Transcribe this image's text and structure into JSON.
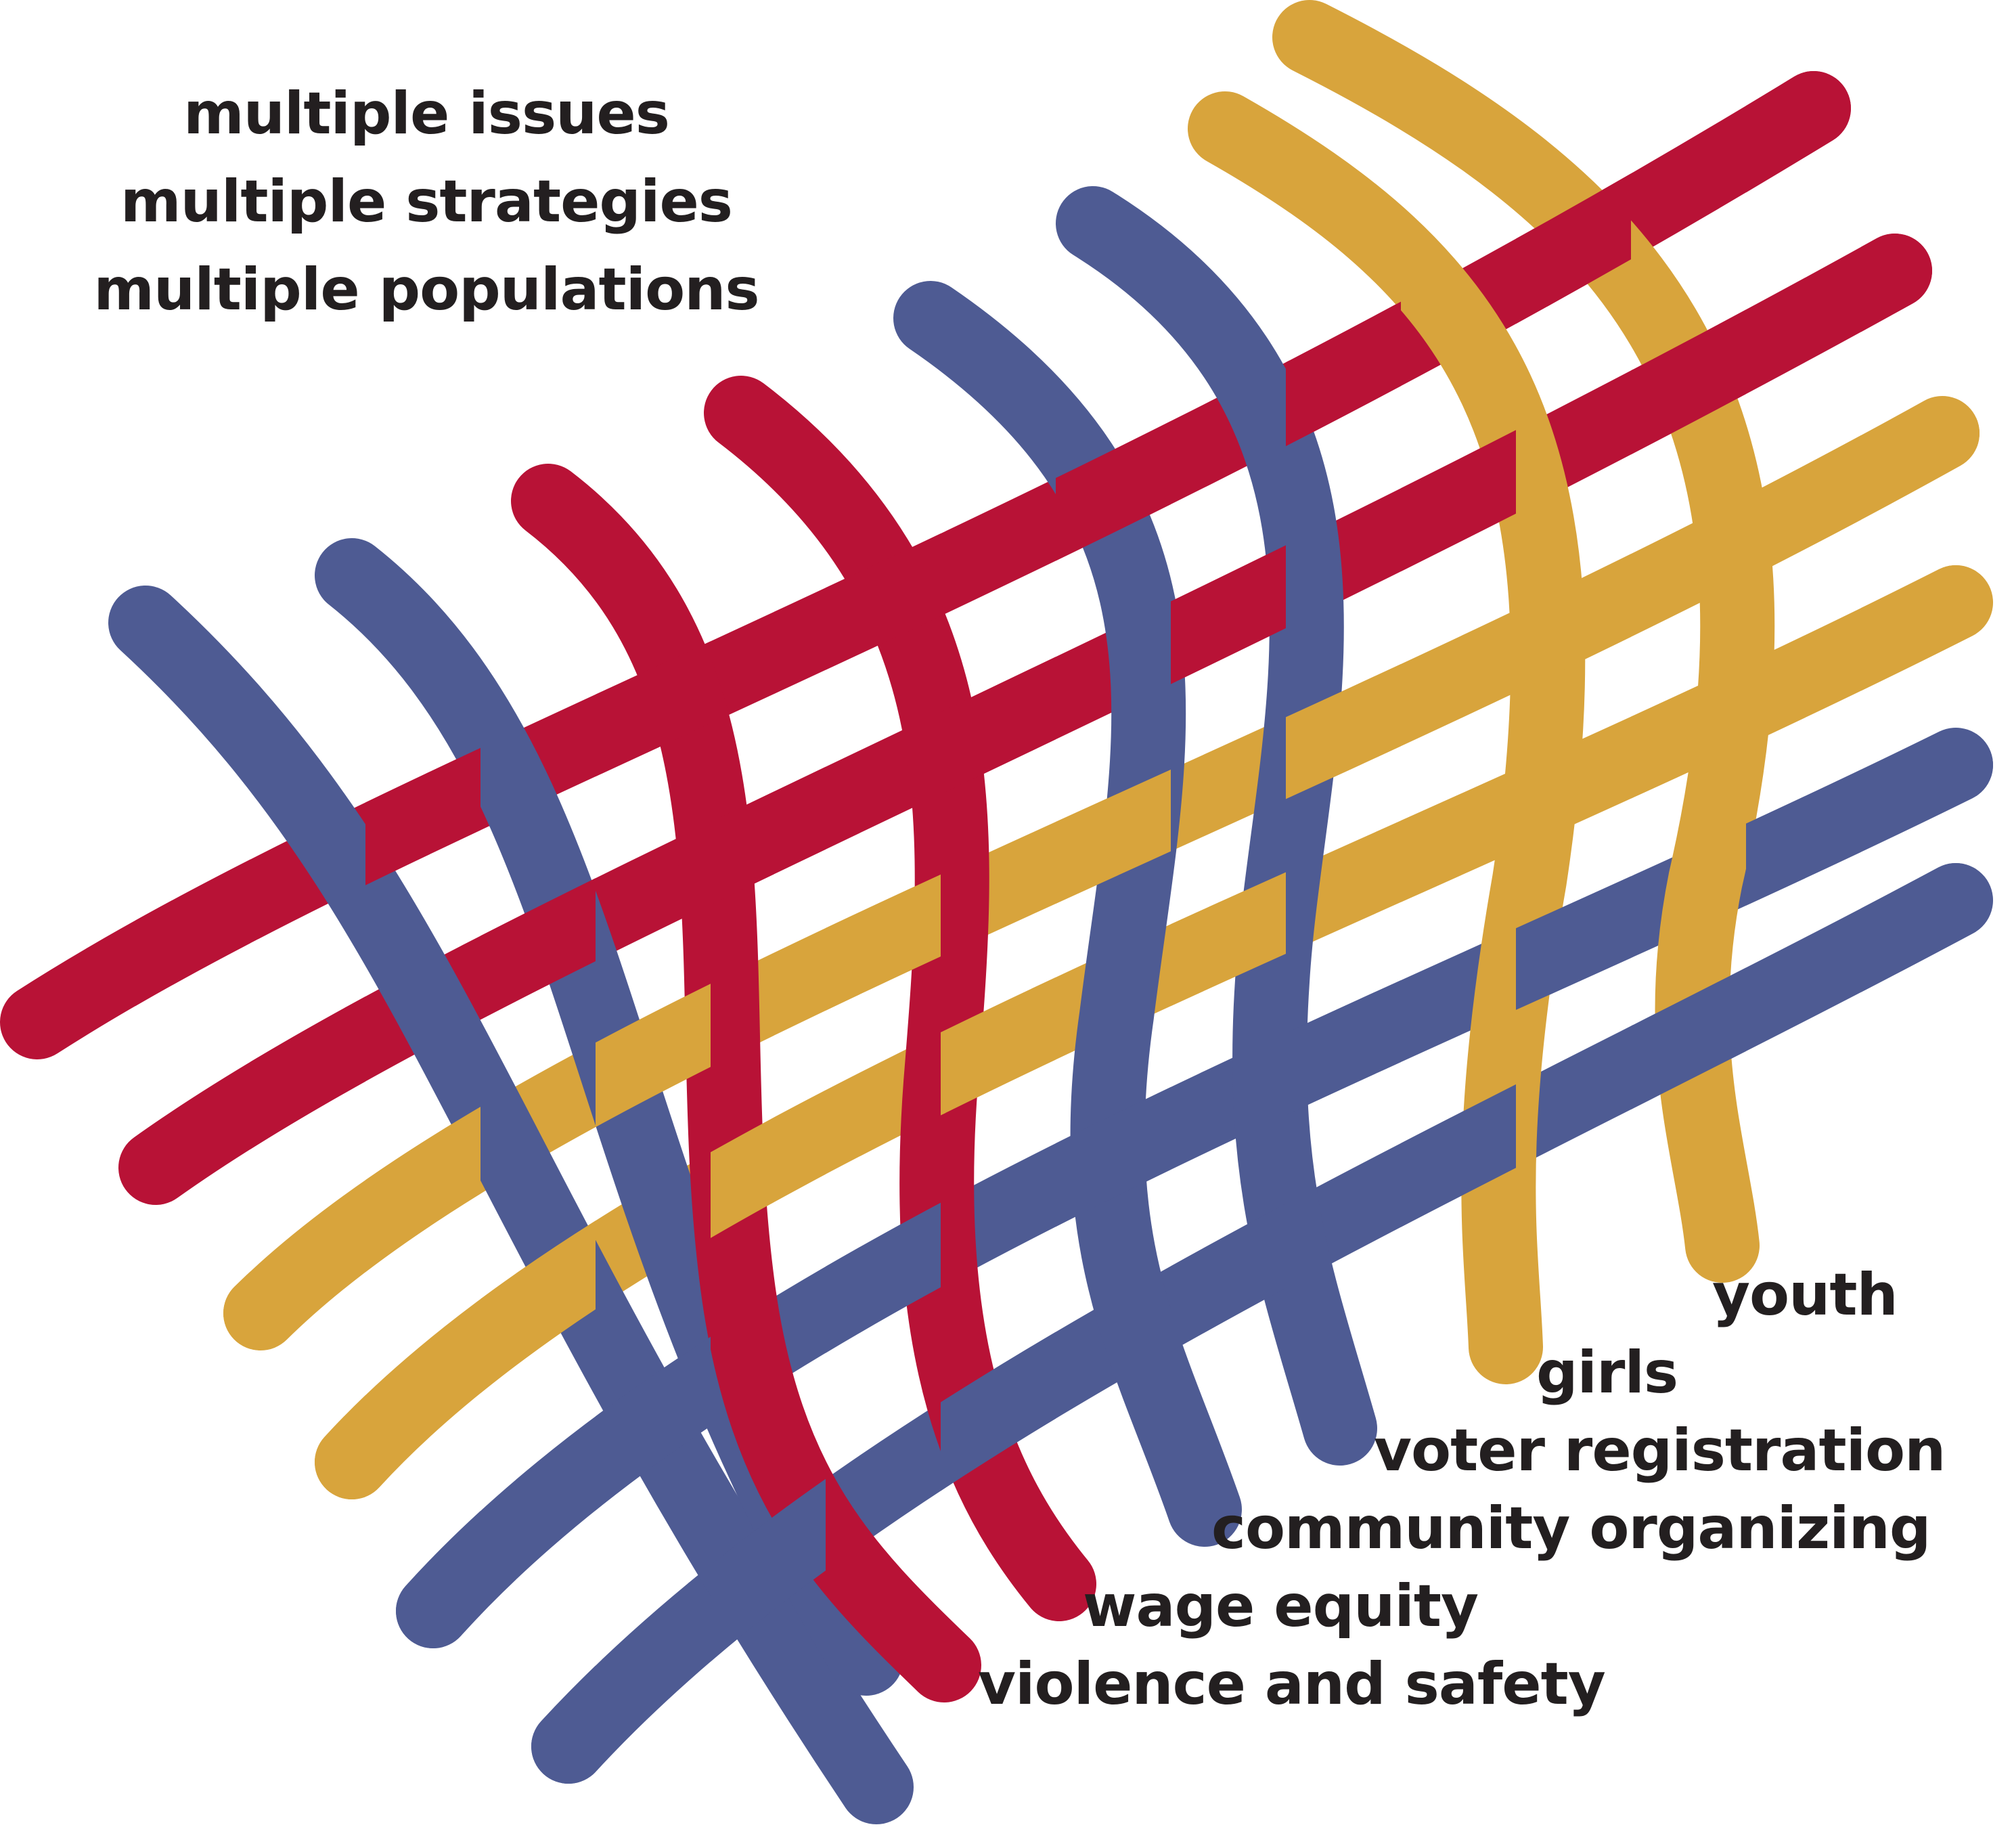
{
  "palette": {
    "red": "#b81236",
    "blue": "#4e5b93",
    "gold": "#d8a43c",
    "text": "#231f20"
  },
  "headlines": [
    "multiple issues",
    "multiple strategies",
    "multiple populations"
  ],
  "tags": [
    "youth",
    "girls",
    "voter registration",
    "community organizing",
    "wage equity",
    "violence and safety"
  ],
  "ribbons": {
    "horizontal": [
      "red",
      "red",
      "gold",
      "gold",
      "blue",
      "blue"
    ],
    "vertical": [
      "blue",
      "blue",
      "red",
      "red",
      "blue",
      "blue",
      "gold",
      "gold"
    ]
  }
}
